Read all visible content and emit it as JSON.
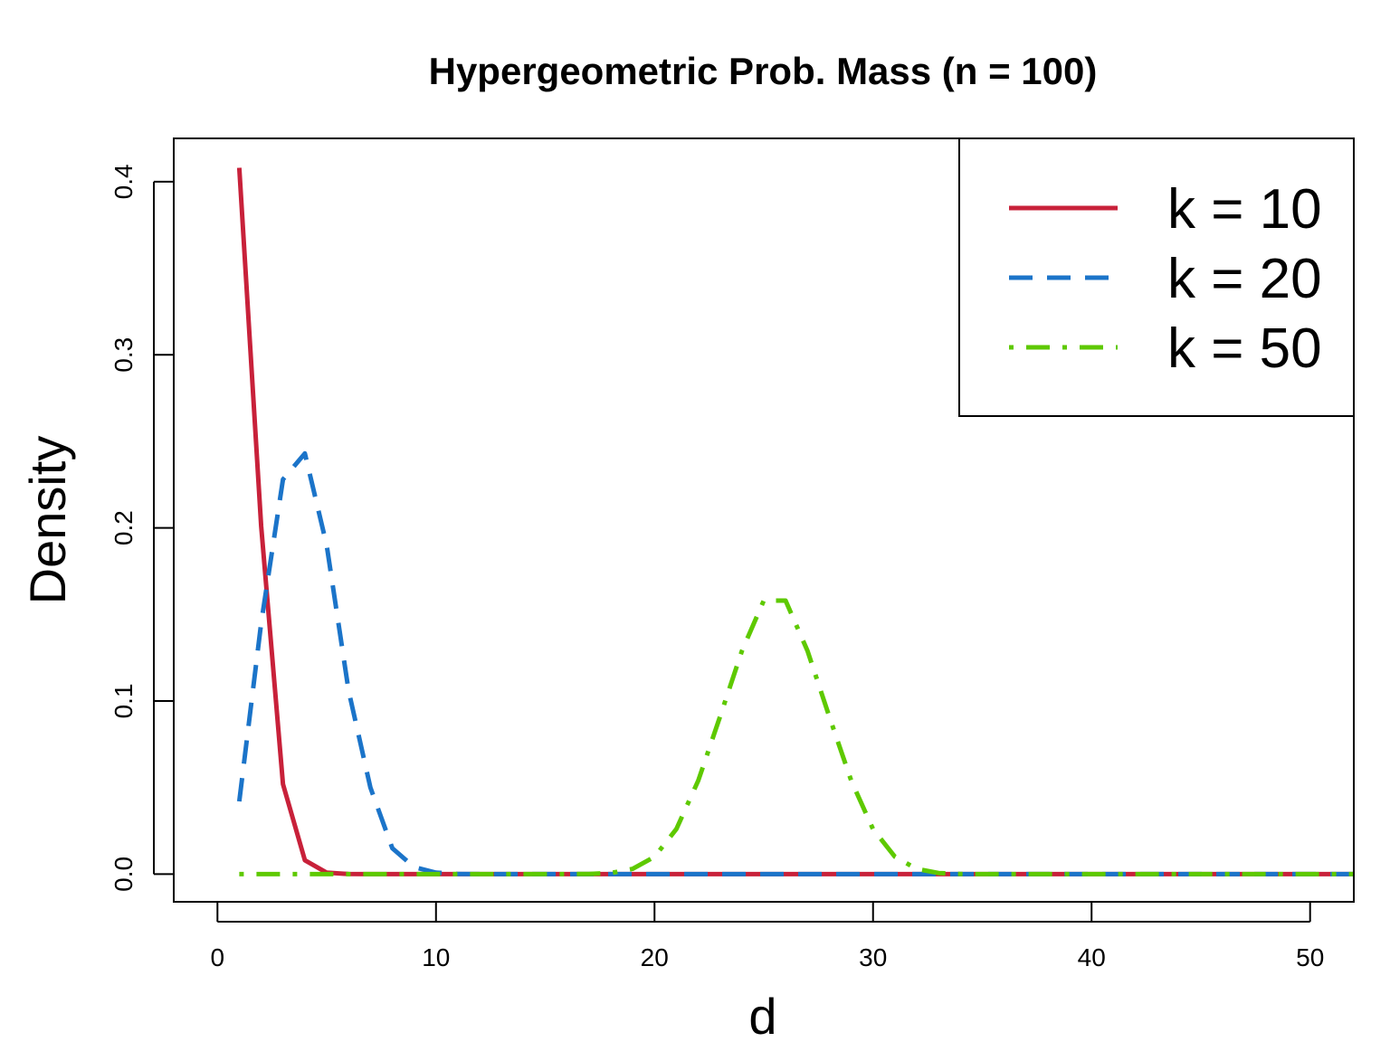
{
  "chart_data": {
    "type": "line",
    "title": "Hypergeometric Prob. Mass (n = 100)",
    "xlabel": "d",
    "ylabel": "Density",
    "xlim": [
      -2,
      52
    ],
    "ylim": [
      -0.016,
      0.425
    ],
    "xticks": [
      0,
      10,
      20,
      30,
      40,
      50
    ],
    "xtick_labels": [
      "0",
      "10",
      "20",
      "30",
      "40",
      "50"
    ],
    "yticks": [
      0,
      0.1,
      0.2,
      0.3,
      0.4
    ],
    "ytick_labels": [
      "0.0",
      "0.1",
      "0.2",
      "0.3",
      "0.4"
    ],
    "grid": false,
    "legend_position": "top-right",
    "series": [
      {
        "name": "k = 10",
        "color": "#c8213a",
        "dash": "solid",
        "x": [
          1,
          2,
          3,
          4,
          5,
          6,
          7,
          8,
          9,
          10,
          11,
          12,
          13,
          14,
          15,
          16,
          17,
          18,
          19,
          20,
          21,
          22,
          23,
          24,
          25,
          26,
          27,
          28,
          29,
          30,
          31,
          32,
          33,
          34,
          35,
          36,
          37,
          38,
          39,
          40,
          41,
          42,
          43,
          44,
          45,
          46,
          47,
          48,
          49,
          50,
          51,
          52
        ],
        "values": [
          0.408,
          0.201,
          0.052,
          0.008,
          0.0008,
          5e-05,
          0,
          0,
          0,
          0,
          0,
          0,
          0,
          0,
          0,
          0,
          0,
          0,
          0,
          0,
          0,
          0,
          0,
          0,
          0,
          0,
          0,
          0,
          0,
          0,
          0,
          0,
          0,
          0,
          0,
          0,
          0,
          0,
          0,
          0,
          0,
          0,
          0,
          0,
          0,
          0,
          0,
          0,
          0,
          0,
          0,
          0
        ]
      },
      {
        "name": "k = 20",
        "color": "#1b74c9",
        "dash": "dashed",
        "x": [
          1,
          2,
          3,
          4,
          5,
          6,
          7,
          8,
          9,
          10,
          11,
          12,
          13,
          14,
          15,
          16,
          17,
          18,
          19,
          20,
          21,
          22,
          23,
          24,
          25,
          26,
          27,
          28,
          29,
          30,
          31,
          32,
          33,
          34,
          35,
          36,
          37,
          38,
          39,
          40,
          41,
          42,
          43,
          44,
          45,
          46,
          47,
          48,
          49,
          50,
          51,
          52
        ],
        "values": [
          0.042,
          0.145,
          0.228,
          0.243,
          0.19,
          0.106,
          0.05,
          0.015,
          0.004,
          0.0008,
          0.0001,
          0,
          0,
          0,
          0,
          0,
          0,
          0,
          0,
          0,
          0,
          0,
          0,
          0,
          0,
          0,
          0,
          0,
          0,
          0,
          0,
          0,
          0,
          0,
          0,
          0,
          0,
          0,
          0,
          0,
          0,
          0,
          0,
          0,
          0,
          0,
          0,
          0,
          0,
          0,
          0,
          0
        ]
      },
      {
        "name": "k = 50",
        "color": "#5ec900",
        "dash": "dotdash",
        "x": [
          1,
          2,
          3,
          4,
          5,
          6,
          7,
          8,
          9,
          10,
          11,
          12,
          13,
          14,
          15,
          16,
          17,
          18,
          19,
          20,
          21,
          22,
          23,
          24,
          25,
          26,
          27,
          28,
          29,
          30,
          31,
          32,
          33,
          34,
          35,
          36,
          37,
          38,
          39,
          40,
          41,
          42,
          43,
          44,
          45,
          46,
          47,
          48,
          49,
          50,
          51,
          52
        ],
        "values": [
          0,
          0,
          0,
          0,
          0,
          0,
          0,
          0,
          0,
          0,
          0,
          0,
          0,
          0,
          0,
          0,
          0.0001,
          0.0006,
          0.003,
          0.01,
          0.026,
          0.054,
          0.091,
          0.129,
          0.158,
          0.158,
          0.129,
          0.091,
          0.054,
          0.026,
          0.01,
          0.003,
          0.0006,
          0.0001,
          0,
          0,
          0,
          0,
          0,
          0,
          0,
          0,
          0,
          0,
          0,
          0,
          0,
          0,
          0,
          0,
          0,
          0
        ]
      }
    ]
  }
}
